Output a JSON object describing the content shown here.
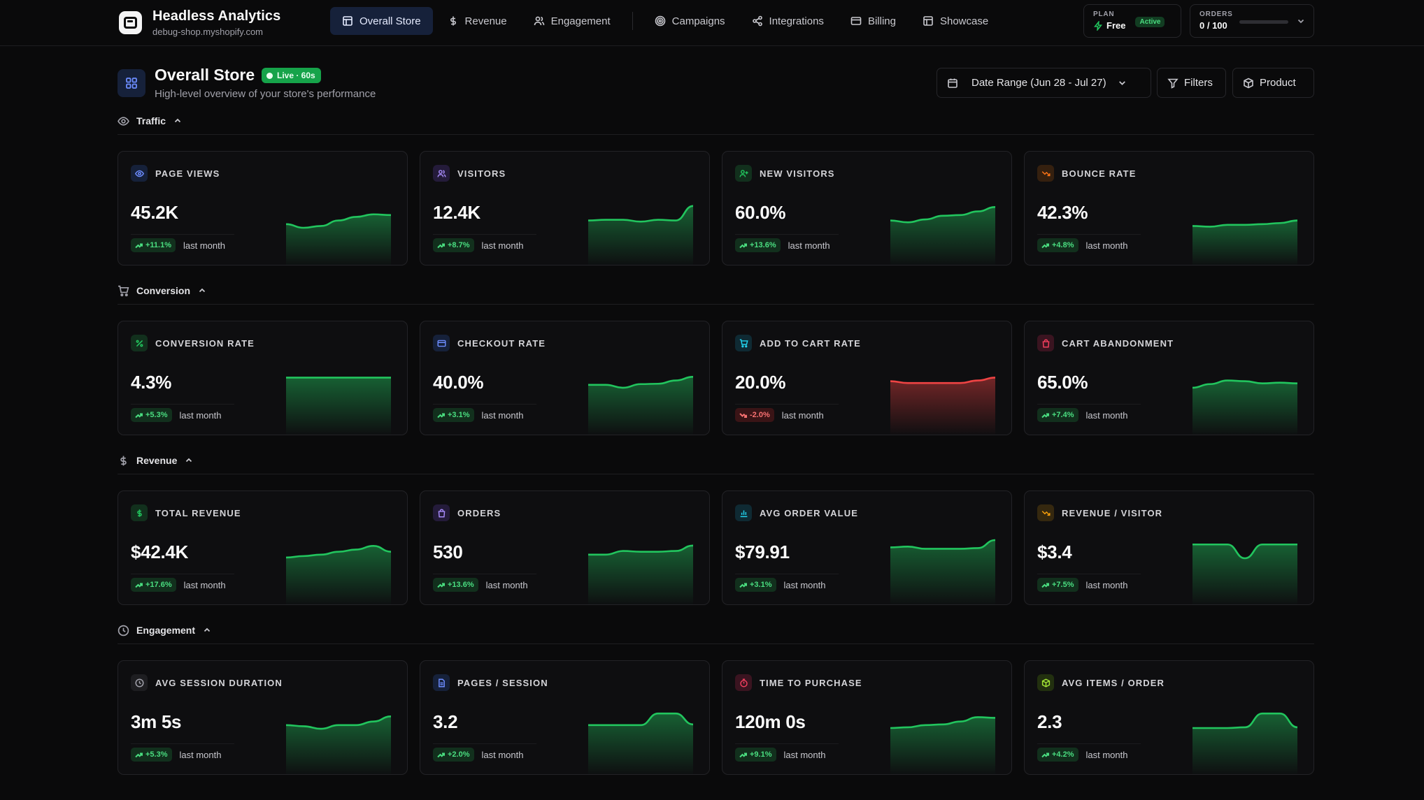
{
  "brand": {
    "title": "Headless Analytics",
    "subtitle": "debug-shop.myshopify.com"
  },
  "nav": {
    "items": [
      {
        "label": "Overall Store",
        "icon": "layout-icon",
        "active": true
      },
      {
        "label": "Revenue",
        "icon": "dollar-icon",
        "active": false
      },
      {
        "label": "Engagement",
        "icon": "users-icon",
        "active": false
      },
      {
        "label": "Campaigns",
        "icon": "target-icon",
        "active": false
      },
      {
        "label": "Integrations",
        "icon": "share-icon",
        "active": false
      },
      {
        "label": "Billing",
        "icon": "card-icon",
        "active": false
      },
      {
        "label": "Showcase",
        "icon": "layout-icon",
        "active": false
      }
    ]
  },
  "plan": {
    "label": "PLAN",
    "name": "Free",
    "status": "Active"
  },
  "orders_quota": {
    "label": "ORDERS",
    "value": "0 / 100",
    "fraction": 0
  },
  "page": {
    "title": "Overall Store",
    "live_badge": "Live · 60s",
    "subtitle": "High-level overview of your store's performance",
    "date_range": "Date Range (Jun 28 - Jul 27)",
    "filters_label": "Filters",
    "product_label": "Product"
  },
  "colors": {
    "accent_up": "#22c55e",
    "accent_down": "#ef4444",
    "nav_active": "#16213a"
  },
  "sections": [
    {
      "label": "Traffic",
      "icon": "eye-icon",
      "cards": [
        {
          "label": "PAGE VIEWS",
          "icon": "eye-icon",
          "icon_color": "#6d8dff",
          "icon_bg": "#16213a",
          "value": "45.2K",
          "delta": "+11.1%",
          "trend": "up",
          "note": "last month",
          "spark": [
            0.35,
            0.25,
            0.3,
            0.45,
            0.55,
            0.62,
            0.6
          ]
        },
        {
          "label": "VISITORS",
          "icon": "users-icon",
          "icon_color": "#a78bfa",
          "icon_bg": "#241b3a",
          "value": "12.4K",
          "delta": "+8.7%",
          "trend": "up",
          "note": "last month",
          "spark": [
            0.45,
            0.47,
            0.47,
            0.42,
            0.47,
            0.45,
            0.85
          ]
        },
        {
          "label": "NEW VISITORS",
          "icon": "user-plus-icon",
          "icon_color": "#22c55e",
          "icon_bg": "#12301d",
          "value": "60.0%",
          "delta": "+13.6%",
          "trend": "up",
          "note": "last month",
          "spark": [
            0.45,
            0.4,
            0.48,
            0.58,
            0.6,
            0.7,
            0.82
          ]
        },
        {
          "label": "BOUNCE RATE",
          "icon": "trend-down-icon",
          "icon_color": "#f97316",
          "icon_bg": "#35200f",
          "value": "42.3%",
          "delta": "+4.8%",
          "trend": "up",
          "note": "last month",
          "spark": [
            0.3,
            0.28,
            0.33,
            0.33,
            0.35,
            0.38,
            0.45
          ]
        }
      ]
    },
    {
      "label": "Conversion",
      "icon": "cart-icon",
      "cards": [
        {
          "label": "CONVERSION RATE",
          "icon": "percent-icon",
          "icon_color": "#22c55e",
          "icon_bg": "#12301d",
          "value": "4.3%",
          "delta": "+5.3%",
          "trend": "up",
          "note": "last month",
          "spark": [
            0.8,
            0.8,
            0.8,
            0.8,
            0.8,
            0.8,
            0.8
          ]
        },
        {
          "label": "CHECKOUT RATE",
          "icon": "card-icon",
          "icon_color": "#6d8dff",
          "icon_bg": "#16213a",
          "value": "40.0%",
          "delta": "+3.1%",
          "trend": "up",
          "note": "last month",
          "spark": [
            0.6,
            0.6,
            0.52,
            0.62,
            0.63,
            0.72,
            0.82
          ]
        },
        {
          "label": "ADD TO CART RATE",
          "icon": "cart-icon",
          "icon_color": "#22d3ee",
          "icon_bg": "#0f2a33",
          "value": "20.0%",
          "delta": "-2.0%",
          "trend": "down",
          "note": "last month",
          "spark": [
            0.7,
            0.65,
            0.65,
            0.65,
            0.65,
            0.72,
            0.8
          ]
        },
        {
          "label": "CART ABANDONMENT",
          "icon": "bag-icon",
          "icon_color": "#f43f5e",
          "icon_bg": "#3a1420",
          "value": "65.0%",
          "delta": "+7.4%",
          "trend": "up",
          "note": "last month",
          "spark": [
            0.52,
            0.62,
            0.72,
            0.7,
            0.64,
            0.66,
            0.64
          ]
        }
      ]
    },
    {
      "label": "Revenue",
      "icon": "dollar-icon",
      "cards": [
        {
          "label": "TOTAL REVENUE",
          "icon": "dollar-icon",
          "icon_color": "#22c55e",
          "icon_bg": "#12301d",
          "value": "$42.4K",
          "delta": "+17.6%",
          "trend": "up",
          "note": "last month",
          "spark": [
            0.52,
            0.56,
            0.6,
            0.68,
            0.74,
            0.84,
            0.68
          ]
        },
        {
          "label": "ORDERS",
          "icon": "bag-icon",
          "icon_color": "#a78bfa",
          "icon_bg": "#241b3a",
          "value": "530",
          "delta": "+13.6%",
          "trend": "up",
          "note": "last month",
          "spark": [
            0.6,
            0.6,
            0.7,
            0.68,
            0.68,
            0.7,
            0.85
          ]
        },
        {
          "label": "AVG ORDER VALUE",
          "icon": "chart-icon",
          "icon_color": "#22d3ee",
          "icon_bg": "#0f2a33",
          "value": "$79.91",
          "delta": "+3.1%",
          "trend": "up",
          "note": "last month",
          "spark": [
            0.8,
            0.82,
            0.76,
            0.76,
            0.76,
            0.78,
            1.0
          ]
        },
        {
          "label": "REVENUE / VISITOR",
          "icon": "trend-down-icon",
          "icon_color": "#f59e0b",
          "icon_bg": "#35280f",
          "value": "$3.4",
          "delta": "+7.5%",
          "trend": "up",
          "note": "last month",
          "spark": [
            0.88,
            0.88,
            0.88,
            0.5,
            0.88,
            0.88,
            0.88
          ]
        }
      ]
    },
    {
      "label": "Engagement",
      "icon": "clock-icon",
      "cards": [
        {
          "label": "AVG SESSION DURATION",
          "icon": "clock-icon",
          "icon_color": "#a1a1aa",
          "icon_bg": "#1e1e21",
          "value": "3m 5s",
          "delta": "+5.3%",
          "trend": "up",
          "note": "last month",
          "spark": [
            0.58,
            0.55,
            0.48,
            0.58,
            0.58,
            0.68,
            0.82
          ]
        },
        {
          "label": "PAGES / SESSION",
          "icon": "file-icon",
          "icon_color": "#6d8dff",
          "icon_bg": "#16213a",
          "value": "3.2",
          "delta": "+2.0%",
          "trend": "up",
          "note": "last month",
          "spark": [
            0.58,
            0.58,
            0.58,
            0.58,
            0.9,
            0.9,
            0.6
          ]
        },
        {
          "label": "TIME TO PURCHASE",
          "icon": "timer-icon",
          "icon_color": "#f43f5e",
          "icon_bg": "#3a1420",
          "value": "120m 0s",
          "delta": "+9.1%",
          "trend": "up",
          "note": "last month",
          "spark": [
            0.5,
            0.52,
            0.58,
            0.6,
            0.68,
            0.8,
            0.78
          ]
        },
        {
          "label": "AVG ITEMS / ORDER",
          "icon": "box-icon",
          "icon_color": "#a3e635",
          "icon_bg": "#22300f",
          "value": "2.3",
          "delta": "+4.2%",
          "trend": "up",
          "note": "last month",
          "spark": [
            0.5,
            0.5,
            0.5,
            0.52,
            0.9,
            0.9,
            0.52
          ]
        }
      ]
    }
  ]
}
